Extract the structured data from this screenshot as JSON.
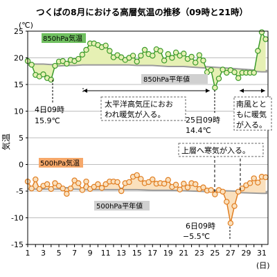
{
  "title": "つくばの8月における高層気温の推移（09時と21時）",
  "chart_data": {
    "type": "line",
    "ylabel": "気温",
    "y_unit": "(℃)",
    "x_unit": "(日)",
    "ylim": [
      -15,
      25
    ],
    "xlim": [
      1,
      31.8
    ],
    "y_ticks": [
      25,
      20,
      15,
      10,
      5,
      0,
      -5,
      -10,
      -15
    ],
    "x_ticks": [
      1,
      3,
      5,
      7,
      9,
      11,
      13,
      15,
      17,
      19,
      21,
      23,
      25,
      27,
      29,
      31
    ],
    "series": [
      {
        "name": "850hPa気温",
        "color": "#3a9a2a",
        "line_color": "#3a9a2a",
        "fill_color": "#e6f0b4",
        "points": [
          [
            1.0,
            19.4
          ],
          [
            1.5,
            18.7
          ],
          [
            2.0,
            16.8
          ],
          [
            2.5,
            16.5
          ],
          [
            3.0,
            16.9
          ],
          [
            3.5,
            16.2
          ],
          [
            4.0,
            15.9
          ],
          [
            4.5,
            18.5
          ],
          [
            5.0,
            19.3
          ],
          [
            5.5,
            19.4
          ],
          [
            6.0,
            18.9
          ],
          [
            6.5,
            19.6
          ],
          [
            7.0,
            19.4
          ],
          [
            7.5,
            19.8
          ],
          [
            8.0,
            20.6
          ],
          [
            8.5,
            21.5
          ],
          [
            9.0,
            22.7
          ],
          [
            9.5,
            22.7
          ],
          [
            10.0,
            22.4
          ],
          [
            10.5,
            22.0
          ],
          [
            11.0,
            22.3
          ],
          [
            11.5,
            21.3
          ],
          [
            12.0,
            20.1
          ],
          [
            12.5,
            20.5
          ],
          [
            13.0,
            20.1
          ],
          [
            13.5,
            19.6
          ],
          [
            14.0,
            20.0
          ],
          [
            14.5,
            20.4
          ],
          [
            15.0,
            19.3
          ],
          [
            15.5,
            20.4
          ],
          [
            16.0,
            21.5
          ],
          [
            16.5,
            20.7
          ],
          [
            17.0,
            20.4
          ],
          [
            17.5,
            21.6
          ],
          [
            18.0,
            21.3
          ],
          [
            18.5,
            19.5
          ],
          [
            19.0,
            20.7
          ],
          [
            19.5,
            20.0
          ],
          [
            20.0,
            21.0
          ],
          [
            20.5,
            20.4
          ],
          [
            21.0,
            20.8
          ],
          [
            21.5,
            19.8
          ],
          [
            22.0,
            20.2
          ],
          [
            22.5,
            19.1
          ],
          [
            23.0,
            20.5
          ],
          [
            23.5,
            19.5
          ],
          [
            24.0,
            17.3
          ],
          [
            24.5,
            17.7
          ],
          [
            25.0,
            14.4
          ],
          [
            25.5,
            16.1
          ],
          [
            26.0,
            17.8
          ],
          [
            26.5,
            17.2
          ],
          [
            27.0,
            17.7
          ],
          [
            27.5,
            17.3
          ],
          [
            28.0,
            16.2
          ],
          [
            28.5,
            17.2
          ],
          [
            29.0,
            17.2
          ],
          [
            29.5,
            17.2
          ],
          [
            30.0,
            17.2
          ],
          [
            30.5,
            21.3
          ],
          [
            31.0,
            24.8
          ],
          [
            31.5,
            23.5
          ]
        ]
      },
      {
        "name": "850hPa平年値",
        "color": "#7f7f7f",
        "points": [
          [
            1,
            18.8
          ],
          [
            2,
            18.7
          ],
          [
            3,
            18.7
          ],
          [
            4,
            18.6
          ],
          [
            5,
            18.6
          ],
          [
            6,
            18.7
          ],
          [
            7,
            18.7
          ],
          [
            8,
            18.8
          ],
          [
            9,
            18.8
          ],
          [
            10,
            18.8
          ],
          [
            11,
            18.8
          ],
          [
            12,
            18.8
          ],
          [
            13,
            18.8
          ],
          [
            14,
            18.8
          ],
          [
            15,
            18.7
          ],
          [
            16,
            18.7
          ],
          [
            17,
            18.7
          ],
          [
            18,
            18.6
          ],
          [
            19,
            18.5
          ],
          [
            20,
            18.5
          ],
          [
            21,
            18.5
          ],
          [
            22,
            18.4
          ],
          [
            23,
            18.3
          ],
          [
            24,
            18.2
          ],
          [
            25,
            18.1
          ],
          [
            26,
            18.0
          ],
          [
            27,
            17.9
          ],
          [
            28,
            17.8
          ],
          [
            29,
            17.7
          ],
          [
            30,
            17.6
          ],
          [
            31,
            17.5
          ],
          [
            31.7,
            17.5
          ]
        ]
      },
      {
        "name": "500hPa気温",
        "color": "#e07d20",
        "line_color": "#e07d20",
        "fill_color": "#fae0bd",
        "points": [
          [
            1.0,
            -3.2
          ],
          [
            1.5,
            -4.5
          ],
          [
            2.0,
            -2.8
          ],
          [
            2.5,
            -4.6
          ],
          [
            3.0,
            -4.0
          ],
          [
            3.5,
            -3.7
          ],
          [
            4.0,
            -4.6
          ],
          [
            4.5,
            -3.5
          ],
          [
            5.0,
            -4.0
          ],
          [
            5.5,
            -4.5
          ],
          [
            6.0,
            -5.5
          ],
          [
            6.5,
            -4.5
          ],
          [
            7.0,
            -3.0
          ],
          [
            7.5,
            -3.5
          ],
          [
            8.0,
            -4.8
          ],
          [
            8.5,
            -3.2
          ],
          [
            9.0,
            -4.6
          ],
          [
            9.5,
            -4.2
          ],
          [
            10.0,
            -3.7
          ],
          [
            10.5,
            -4.4
          ],
          [
            11.0,
            -3.7
          ],
          [
            11.5,
            -3.2
          ],
          [
            12.0,
            -3.2
          ],
          [
            12.5,
            -3.3
          ],
          [
            13.0,
            -5.0
          ],
          [
            13.5,
            -3.5
          ],
          [
            14.0,
            -3.3
          ],
          [
            14.5,
            -2.3
          ],
          [
            15.0,
            -2.0
          ],
          [
            15.5,
            -2.7
          ],
          [
            16.0,
            -3.5
          ],
          [
            16.5,
            -3.3
          ],
          [
            17.0,
            -2.8
          ],
          [
            17.5,
            -3.6
          ],
          [
            18.0,
            -3.5
          ],
          [
            18.5,
            -3.6
          ],
          [
            19.0,
            -2.9
          ],
          [
            19.5,
            -4.2
          ],
          [
            20.0,
            -3.8
          ],
          [
            20.5,
            -4.7
          ],
          [
            21.0,
            -3.6
          ],
          [
            21.5,
            -4.3
          ],
          [
            22.0,
            -3.5
          ],
          [
            22.5,
            -3.7
          ],
          [
            23.0,
            -4.6
          ],
          [
            23.5,
            -4.3
          ],
          [
            24.0,
            -4.9
          ],
          [
            24.5,
            -4.8
          ],
          [
            25.0,
            -5.6
          ],
          [
            25.5,
            -4.8
          ],
          [
            26.0,
            -5.1
          ],
          [
            26.5,
            -7.0
          ],
          [
            27.0,
            -11.0
          ],
          [
            27.5,
            -7.8
          ],
          [
            28.0,
            -5.1
          ],
          [
            28.5,
            -4.5
          ],
          [
            29.0,
            -3.9
          ],
          [
            29.5,
            -3.5
          ],
          [
            30.0,
            -2.6
          ],
          [
            30.5,
            -3.4
          ],
          [
            31.0,
            -2.3
          ],
          [
            31.5,
            -2.4
          ]
        ]
      },
      {
        "name": "500hPa平年値",
        "color": "#7f7f7f",
        "points": [
          [
            1,
            -4.5
          ],
          [
            3,
            -4.5
          ],
          [
            5,
            -4.5
          ],
          [
            7,
            -4.5
          ],
          [
            9,
            -4.6
          ],
          [
            11,
            -4.6
          ],
          [
            13,
            -4.6
          ],
          [
            15,
            -4.6
          ],
          [
            17,
            -4.7
          ],
          [
            19,
            -4.7
          ],
          [
            21,
            -4.8
          ],
          [
            23,
            -4.9
          ],
          [
            25,
            -5.0
          ],
          [
            27,
            -5.1
          ],
          [
            29,
            -5.2
          ],
          [
            31,
            -5.3
          ],
          [
            31.7,
            -5.3
          ]
        ]
      }
    ],
    "annotations": {
      "day4": [
        "4日09時",
        "15.9℃"
      ],
      "pacific": [
        "太平洋高気圧におお",
        "われ暖気が入る。"
      ],
      "day25": [
        "25日09時",
        "14.4℃"
      ],
      "south_wind": [
        "南風とと",
        "もに暖気",
        "が入る。"
      ],
      "cold_air": "上層へ寒気が入る。",
      "day6": [
        "6日09時",
        "−5.5℃"
      ]
    }
  }
}
